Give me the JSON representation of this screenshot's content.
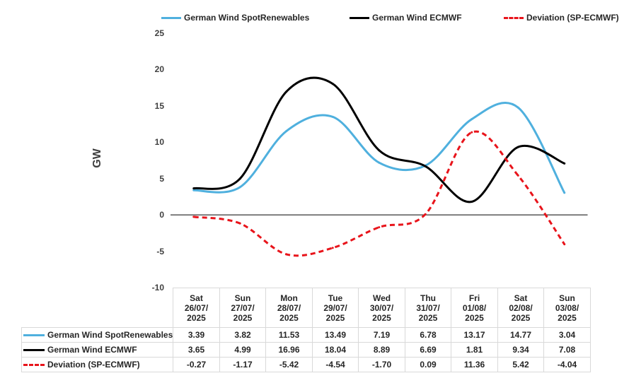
{
  "chart_data": {
    "type": "line",
    "ylabel": "GW",
    "ylim": [
      -10,
      25
    ],
    "yticks": [
      25,
      20,
      15,
      10,
      5,
      0,
      -5,
      -10
    ],
    "categories": [
      [
        "Sat",
        "26/07/",
        "2025"
      ],
      [
        "Sun",
        "27/07/",
        "2025"
      ],
      [
        "Mon",
        "28/07/",
        "2025"
      ],
      [
        "Tue",
        "29/07/",
        "2025"
      ],
      [
        "Wed",
        "30/07/",
        "2025"
      ],
      [
        "Thu",
        "31/07/",
        "2025"
      ],
      [
        "Fri",
        "01/08/",
        "2025"
      ],
      [
        "Sat",
        "02/08/",
        "2025"
      ],
      [
        "Sun",
        "03/08/",
        "2025"
      ]
    ],
    "series": [
      {
        "name": "German Wind SpotRenewables",
        "color": "#4fb0de",
        "dash": "solid",
        "values": [
          3.39,
          3.82,
          11.53,
          13.49,
          7.19,
          6.78,
          13.17,
          14.77,
          3.04
        ],
        "labels": [
          "3.39",
          "3.82",
          "11.53",
          "13.49",
          "7.19",
          "6.78",
          "13.17",
          "14.77",
          "3.04"
        ]
      },
      {
        "name": "German Wind ECMWF",
        "color": "#000000",
        "dash": "solid",
        "values": [
          3.65,
          4.99,
          16.96,
          18.04,
          8.89,
          6.69,
          1.81,
          9.34,
          7.08
        ],
        "labels": [
          "3.65",
          "4.99",
          "16.96",
          "18.04",
          "8.89",
          "6.69",
          "1.81",
          "9.34",
          "7.08"
        ]
      },
      {
        "name": "Deviation (SP-ECMWF)",
        "color": "#e8141b",
        "dash": "dashed",
        "values": [
          -0.27,
          -1.17,
          -5.42,
          -4.54,
          -1.7,
          0.09,
          11.36,
          5.42,
          -4.04
        ],
        "labels": [
          "-0.27",
          "-1.17",
          "-5.42",
          "-4.54",
          "-1.70",
          "0.09",
          "11.36",
          "5.42",
          "-4.04"
        ]
      }
    ]
  }
}
